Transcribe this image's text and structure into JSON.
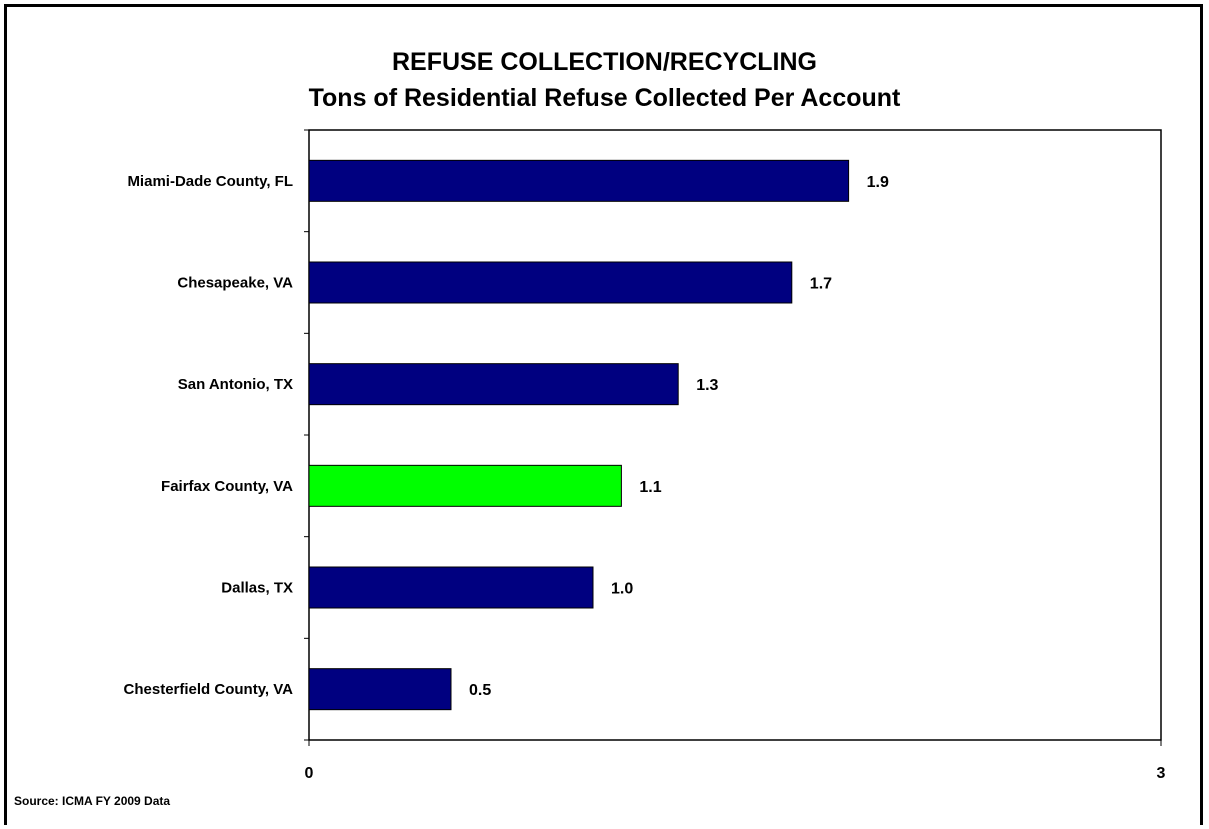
{
  "chart_data": {
    "type": "bar",
    "orientation": "horizontal",
    "title": "REFUSE COLLECTION/RECYCLING",
    "subtitle": "Tons of Residential Refuse Collected Per Account",
    "categories": [
      "Miami-Dade County, FL",
      "Chesapeake, VA",
      "San Antonio, TX",
      "Fairfax County, VA",
      "Dallas, TX",
      "Chesterfield County, VA"
    ],
    "values": [
      1.9,
      1.7,
      1.3,
      1.1,
      1.0,
      0.5
    ],
    "value_labels": [
      "1.9",
      "1.7",
      "1.3",
      "1.1",
      "1.0",
      "0.5"
    ],
    "bar_colors": [
      "#000080",
      "#000080",
      "#000080",
      "#00FF00",
      "#000080",
      "#000080"
    ],
    "xlim": [
      0,
      3
    ],
    "x_tick_labels": [
      "0",
      "3"
    ],
    "grid": false,
    "legend": "none"
  },
  "source": "Source:  ICMA FY 2009 Data"
}
